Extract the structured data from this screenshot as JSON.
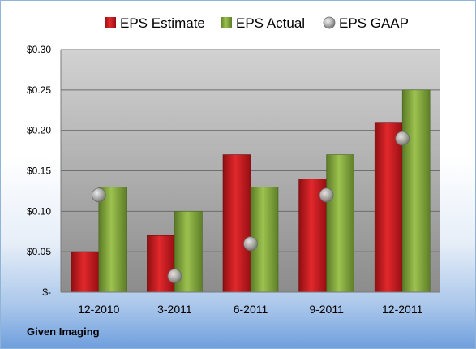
{
  "chart_data": {
    "type": "bar",
    "categories": [
      "12-2010",
      "3-2011",
      "6-2011",
      "9-2011",
      "12-2011"
    ],
    "series": [
      {
        "name": "EPS Estimate",
        "kind": "bar",
        "color": "#c8161c",
        "values": [
          0.05,
          0.07,
          0.17,
          0.14,
          0.21
        ]
      },
      {
        "name": "EPS Actual",
        "kind": "bar",
        "color": "#7fa33c",
        "values": [
          0.13,
          0.1,
          0.13,
          0.17,
          0.25
        ]
      },
      {
        "name": "EPS GAAP",
        "kind": "marker",
        "color": "#9a9a9a",
        "values": [
          0.12,
          0.02,
          0.06,
          0.12,
          0.19
        ]
      }
    ],
    "yticks": [
      "$-",
      "$0.05",
      "$0.10",
      "$0.15",
      "$0.20",
      "$0.25",
      "$0.30"
    ],
    "ylim": [
      0,
      0.3
    ],
    "grid": true,
    "legend_position": "top"
  },
  "footer_label": "Given Imaging"
}
